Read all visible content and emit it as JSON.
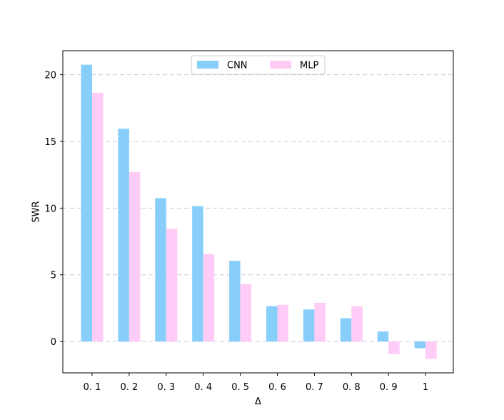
{
  "chart_data": {
    "type": "bar",
    "categories": [
      "0. 1",
      "0. 2",
      "0. 3",
      "0. 4",
      "0. 5",
      "0. 6",
      "0. 7",
      "0. 8",
      "0. 9",
      "1"
    ],
    "series": [
      {
        "name": "CNN",
        "color": "#87CEFA",
        "values": [
          20.75,
          15.95,
          10.75,
          10.15,
          6.05,
          2.65,
          2.4,
          1.75,
          0.75,
          -0.5
        ]
      },
      {
        "name": "MLP",
        "color": "#FFCCF7",
        "values": [
          18.65,
          12.7,
          8.45,
          6.55,
          4.3,
          2.75,
          2.9,
          2.65,
          -0.95,
          -1.3
        ]
      }
    ],
    "xlabel": "Δ",
    "ylabel": "SWR",
    "ylim": [
      -2.35,
      21.8
    ],
    "yticks": [
      0,
      5,
      10,
      15,
      20
    ],
    "grid": "horizontal dashed",
    "grid_color": "#C8C8E8",
    "legend_position": "upper-center"
  }
}
